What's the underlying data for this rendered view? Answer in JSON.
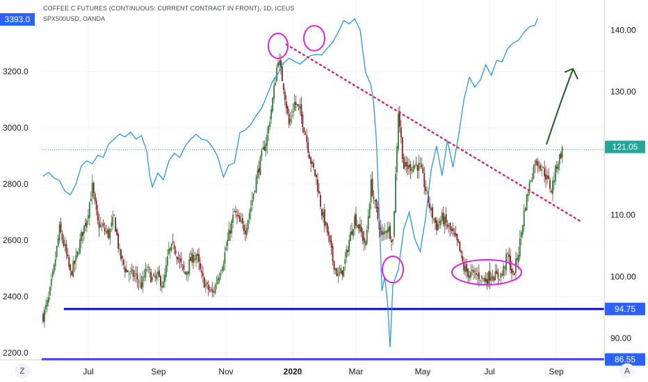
{
  "header": {
    "title": "COFFEE C FUTURES (CONTINUOUS: CURRENT CONTRACT IN FRONT), 1D, ICEUS",
    "subtitle": "SPX500USD, OANDA"
  },
  "corner": {
    "left": "Z",
    "right": "A"
  },
  "colors": {
    "spx_line": "#2196f3",
    "candle_up": "#2e7d32",
    "candle_down": "#8b1a1a",
    "support": "#0000ff",
    "trend": "#e0245e",
    "circle": "#e61ee6",
    "arrow": "#1b5e20",
    "label_blue": "#2962ff",
    "label_dark": "#2962ff",
    "label_green": "#26a69a"
  },
  "chart_data": {
    "type": "line",
    "left_axis": {
      "name": "Coffee",
      "ticks": [
        2200,
        2400,
        2600,
        2800,
        3000,
        3200
      ],
      "tick_labels": [
        "2200.0",
        "2400.0",
        "2600.0",
        "2800.0",
        "3000.0",
        "3200.0"
      ],
      "range": [
        2175,
        3455
      ]
    },
    "right_axis": {
      "name": "SPX500",
      "ticks": [
        90,
        100,
        110,
        120,
        130,
        140
      ],
      "tick_labels": [
        "90.00",
        "100.00",
        "110.00",
        "",
        "130.00",
        "140.00"
      ],
      "range": [
        86.5,
        144.9
      ]
    },
    "x_labels": [
      {
        "label": "Jul",
        "bold": false
      },
      {
        "label": "Sep",
        "bold": false
      },
      {
        "label": "Nov",
        "bold": false
      },
      {
        "label": "2020",
        "bold": true
      },
      {
        "label": "Mar",
        "bold": false
      },
      {
        "label": "May",
        "bold": false
      },
      {
        "label": "Jul",
        "bold": false
      },
      {
        "label": "Sep",
        "bold": false
      }
    ],
    "price_badges": [
      {
        "label": "3393.0",
        "axis": "left",
        "value": 3393.0
      },
      {
        "label": "121.05",
        "axis": "right",
        "value": 121.05
      },
      {
        "label": "94.75",
        "axis": "right",
        "value": 94.75
      },
      {
        "label": "86.55",
        "axis": "right",
        "value": 86.55
      }
    ],
    "support_lines": [
      {
        "label": "94.75",
        "value": 94.75
      },
      {
        "label": "86.55",
        "value": 86.55
      }
    ],
    "spx_path": [
      [
        0,
        2828
      ],
      [
        2,
        2842
      ],
      [
        4,
        2822
      ],
      [
        6,
        2812
      ],
      [
        8,
        2775
      ],
      [
        10,
        2762
      ],
      [
        12,
        2800
      ],
      [
        14,
        2865
      ],
      [
        16,
        2883
      ],
      [
        18,
        2872
      ],
      [
        20,
        2902
      ],
      [
        22,
        2895
      ],
      [
        24,
        2943
      ],
      [
        26,
        2960
      ],
      [
        28,
        2978
      ],
      [
        30,
        2968
      ],
      [
        32,
        2985
      ],
      [
        34,
        2960
      ],
      [
        36,
        2973
      ],
      [
        38,
        2915
      ],
      [
        39,
        2830
      ],
      [
        40,
        2790
      ],
      [
        42,
        2840
      ],
      [
        44,
        2815
      ],
      [
        46,
        2882
      ],
      [
        48,
        2910
      ],
      [
        50,
        2895
      ],
      [
        52,
        2935
      ],
      [
        54,
        2960
      ],
      [
        56,
        2977
      ],
      [
        58,
        2960
      ],
      [
        60,
        2955
      ],
      [
        62,
        2932
      ],
      [
        64,
        2895
      ],
      [
        66,
        2825
      ],
      [
        68,
        2868
      ],
      [
        70,
        2875
      ],
      [
        72,
        2983
      ],
      [
        74,
        2993
      ],
      [
        76,
        3012
      ],
      [
        78,
        3044
      ],
      [
        80,
        3070
      ],
      [
        82,
        3118
      ],
      [
        84,
        3166
      ],
      [
        86,
        3193
      ],
      [
        88,
        3230
      ],
      [
        90,
        3248
      ],
      [
        92,
        3237
      ],
      [
        94,
        3227
      ],
      [
        96,
        3244
      ],
      [
        98,
        3258
      ],
      [
        100,
        3261
      ],
      [
        102,
        3260
      ],
      [
        104,
        3283
      ],
      [
        106,
        3305
      ],
      [
        108,
        3340
      ],
      [
        110,
        3382
      ],
      [
        112,
        3370
      ],
      [
        114,
        3388
      ],
      [
        116,
        3350
      ],
      [
        118,
        3199
      ],
      [
        120,
        3152
      ],
      [
        121,
        3085
      ],
      [
        122,
        2950
      ],
      [
        123,
        2700
      ],
      [
        124,
        2420
      ],
      [
        125,
        2470
      ],
      [
        126,
        2385
      ],
      [
        127,
        2220
      ],
      [
        128,
        2440
      ],
      [
        130,
        2495
      ],
      [
        132,
        2640
      ],
      [
        134,
        2700
      ],
      [
        136,
        2605
      ],
      [
        138,
        2560
      ],
      [
        140,
        2680
      ],
      [
        142,
        2850
      ],
      [
        144,
        2935
      ],
      [
        146,
        2830
      ],
      [
        148,
        2955
      ],
      [
        150,
        2860
      ],
      [
        152,
        2970
      ],
      [
        154,
        3100
      ],
      [
        156,
        3180
      ],
      [
        158,
        3145
      ],
      [
        160,
        3170
      ],
      [
        162,
        3225
      ],
      [
        164,
        3187
      ],
      [
        166,
        3240
      ],
      [
        168,
        3235
      ],
      [
        170,
        3282
      ],
      [
        172,
        3302
      ],
      [
        174,
        3312
      ],
      [
        176,
        3340
      ],
      [
        178,
        3360
      ],
      [
        180,
        3365
      ],
      [
        181,
        3390
      ]
    ],
    "coffee_path": [
      [
        0,
        2330
      ],
      [
        2,
        2390
      ],
      [
        4,
        2500
      ],
      [
        6,
        2640
      ],
      [
        8,
        2570
      ],
      [
        10,
        2480
      ],
      [
        12,
        2530
      ],
      [
        14,
        2615
      ],
      [
        16,
        2680
      ],
      [
        18,
        2790
      ],
      [
        20,
        2660
      ],
      [
        22,
        2640
      ],
      [
        24,
        2620
      ],
      [
        26,
        2680
      ],
      [
        28,
        2550
      ],
      [
        30,
        2500
      ],
      [
        32,
        2480
      ],
      [
        34,
        2470
      ],
      [
        36,
        2440
      ],
      [
        38,
        2500
      ],
      [
        40,
        2460
      ],
      [
        42,
        2470
      ],
      [
        44,
        2440
      ],
      [
        46,
        2560
      ],
      [
        48,
        2580
      ],
      [
        50,
        2520
      ],
      [
        52,
        2480
      ],
      [
        54,
        2530
      ],
      [
        56,
        2550
      ],
      [
        58,
        2470
      ],
      [
        60,
        2430
      ],
      [
        62,
        2410
      ],
      [
        64,
        2470
      ],
      [
        66,
        2530
      ],
      [
        68,
        2620
      ],
      [
        70,
        2700
      ],
      [
        72,
        2660
      ],
      [
        74,
        2640
      ],
      [
        76,
        2720
      ],
      [
        78,
        2820
      ],
      [
        80,
        2900
      ],
      [
        82,
        2970
      ],
      [
        84,
        3100
      ],
      [
        86,
        3250
      ],
      [
        88,
        3150
      ],
      [
        90,
        3010
      ],
      [
        92,
        3090
      ],
      [
        94,
        3060
      ],
      [
        96,
        2980
      ],
      [
        98,
        2880
      ],
      [
        100,
        2820
      ],
      [
        102,
        2700
      ],
      [
        104,
        2630
      ],
      [
        106,
        2530
      ],
      [
        108,
        2470
      ],
      [
        110,
        2500
      ],
      [
        112,
        2600
      ],
      [
        114,
        2680
      ],
      [
        116,
        2640
      ],
      [
        118,
        2580
      ],
      [
        120,
        2800
      ],
      [
        122,
        2700
      ],
      [
        124,
        2610
      ],
      [
        126,
        2650
      ],
      [
        128,
        2600
      ],
      [
        130,
        3060
      ],
      [
        132,
        2860
      ],
      [
        134,
        2860
      ],
      [
        136,
        2870
      ],
      [
        138,
        2860
      ],
      [
        140,
        2780
      ],
      [
        142,
        2700
      ],
      [
        144,
        2650
      ],
      [
        146,
        2680
      ],
      [
        148,
        2650
      ],
      [
        150,
        2620
      ],
      [
        152,
        2580
      ],
      [
        154,
        2500
      ],
      [
        156,
        2480
      ],
      [
        158,
        2480
      ],
      [
        160,
        2470
      ],
      [
        162,
        2460
      ],
      [
        164,
        2480
      ],
      [
        166,
        2470
      ],
      [
        168,
        2480
      ],
      [
        170,
        2550
      ],
      [
        172,
        2470
      ],
      [
        174,
        2560
      ],
      [
        176,
        2700
      ],
      [
        178,
        2800
      ],
      [
        180,
        2880
      ],
      [
        182,
        2870
      ],
      [
        184,
        2830
      ],
      [
        186,
        2780
      ],
      [
        188,
        2870
      ],
      [
        190,
        2920
      ]
    ]
  }
}
